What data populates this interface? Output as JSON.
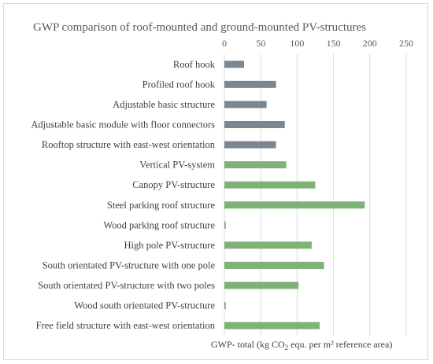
{
  "chart_data": {
    "type": "bar",
    "orientation": "horizontal",
    "title": "GWP comparison of roof-mounted and ground-mounted PV-structures",
    "xlabel_prefix": "GWP- total (kg CO",
    "xlabel_sub": "2",
    "xlabel_suffix": " equ. per m² reference area)",
    "xlim": [
      0,
      250
    ],
    "ticks": [
      "0",
      "50",
      "100",
      "150",
      "200",
      "250"
    ],
    "tick_values": [
      0,
      50,
      100,
      150,
      200,
      250
    ],
    "grid": true,
    "colors": {
      "roof": "#7a8791",
      "ground": "#7fb179"
    },
    "categories": [
      "Roof hook",
      "Profiled roof hook",
      "Adjustable basic structure",
      "Adjustable basic module with floor connectors",
      "Rooftop structure with east-west orientation",
      "Vertical PV-system",
      "Canopy PV-structure",
      "Steel parking roof structure",
      "Wood parking roof structure",
      "High pole PV-structure",
      "South orientated PV-structure with one pole",
      "South orientated PV-structure with two poles",
      "Wood south orientated PV-structure",
      "Free field structure with east-west orientation"
    ],
    "values": [
      27,
      71,
      58,
      83,
      71,
      85,
      125,
      193,
      2,
      120,
      137,
      102,
      2,
      131
    ],
    "groups": [
      "roof",
      "roof",
      "roof",
      "roof",
      "roof",
      "ground",
      "ground",
      "ground",
      "ground",
      "ground",
      "ground",
      "ground",
      "ground",
      "ground"
    ]
  }
}
